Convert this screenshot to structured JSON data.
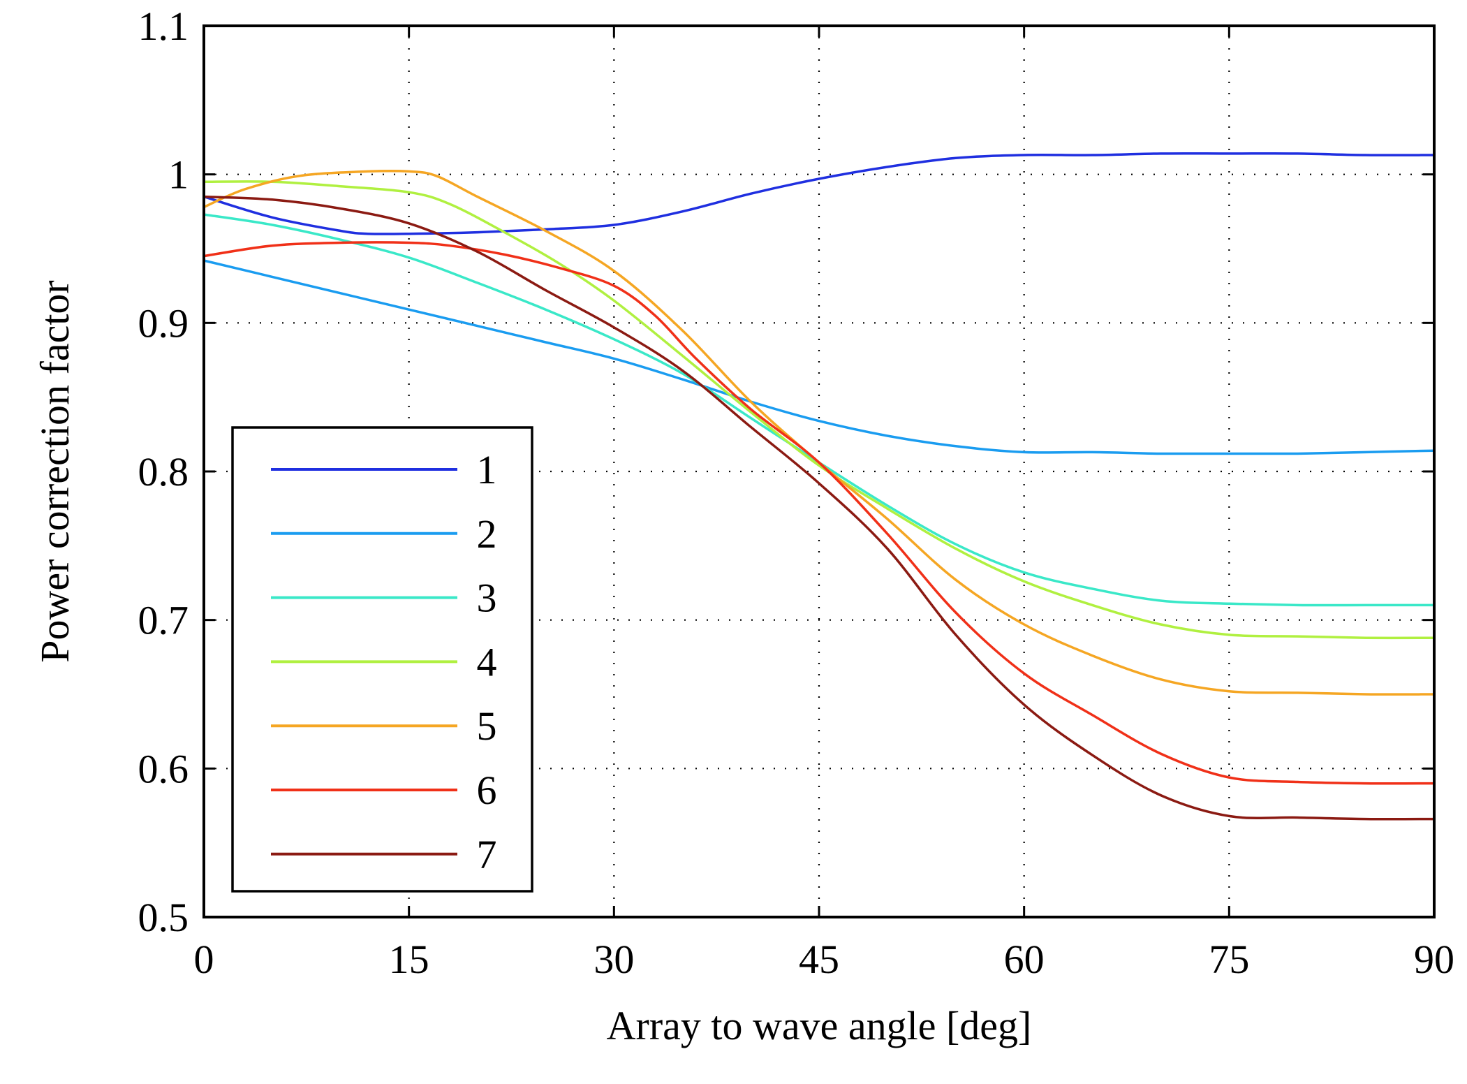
{
  "chart_data": {
    "type": "line",
    "title": "",
    "xlabel": "Array to wave angle [deg]",
    "ylabel": "Power correction factor",
    "xlim": [
      0,
      90
    ],
    "ylim": [
      0.5,
      1.1
    ],
    "xticks": [
      0,
      15,
      30,
      45,
      60,
      75,
      90
    ],
    "yticks": [
      0.5,
      0.6,
      0.7,
      0.8,
      0.9,
      1.0,
      1.1
    ],
    "xtick_labels": [
      "0",
      "15",
      "30",
      "45",
      "60",
      "75",
      "90"
    ],
    "ytick_labels": [
      "0.5",
      "0.6",
      "0.7",
      "0.8",
      "0.9",
      "1",
      "1.1"
    ],
    "grid": "dotted",
    "legend_position": "lower-left",
    "series": [
      {
        "name": "1",
        "color": "#1f2fe0",
        "x": [
          0,
          5,
          10,
          12,
          15,
          20,
          25,
          30,
          35,
          40,
          45,
          50,
          55,
          60,
          65,
          70,
          75,
          80,
          85,
          90
        ],
        "y": [
          0.985,
          0.971,
          0.962,
          0.96,
          0.96,
          0.961,
          0.963,
          0.966,
          0.975,
          0.987,
          0.997,
          1.005,
          1.011,
          1.013,
          1.013,
          1.014,
          1.014,
          1.014,
          1.013,
          1.013
        ]
      },
      {
        "name": "2",
        "color": "#1a9cf0",
        "x": [
          0,
          5,
          10,
          15,
          20,
          25,
          30,
          35,
          40,
          45,
          50,
          55,
          60,
          65,
          70,
          75,
          80,
          85,
          90
        ],
        "y": [
          0.942,
          0.931,
          0.92,
          0.909,
          0.898,
          0.887,
          0.876,
          0.862,
          0.847,
          0.834,
          0.824,
          0.817,
          0.813,
          0.813,
          0.812,
          0.812,
          0.812,
          0.813,
          0.814
        ]
      },
      {
        "name": "3",
        "color": "#3ae8c8",
        "x": [
          0,
          5,
          10,
          15,
          20,
          25,
          30,
          35,
          40,
          45,
          50,
          55,
          60,
          65,
          70,
          75,
          80,
          85,
          90
        ],
        "y": [
          0.973,
          0.966,
          0.956,
          0.944,
          0.927,
          0.909,
          0.889,
          0.866,
          0.836,
          0.806,
          0.777,
          0.751,
          0.732,
          0.721,
          0.713,
          0.711,
          0.71,
          0.71,
          0.71
        ]
      },
      {
        "name": "4",
        "color": "#b0f040",
        "x": [
          0,
          5,
          10,
          15,
          18,
          22,
          26,
          30,
          35,
          40,
          45,
          50,
          55,
          60,
          65,
          70,
          75,
          80,
          85,
          90
        ],
        "y": [
          0.995,
          0.995,
          0.992,
          0.988,
          0.98,
          0.961,
          0.94,
          0.915,
          0.878,
          0.84,
          0.804,
          0.775,
          0.748,
          0.726,
          0.71,
          0.697,
          0.69,
          0.689,
          0.688,
          0.688
        ]
      },
      {
        "name": "5",
        "color": "#f5a623",
        "x": [
          0,
          3,
          7,
          12,
          15,
          17,
          20,
          25,
          30,
          35,
          40,
          45,
          50,
          55,
          60,
          65,
          70,
          75,
          80,
          85,
          90
        ],
        "y": [
          0.978,
          0.99,
          0.999,
          1.002,
          1.002,
          0.999,
          0.985,
          0.962,
          0.935,
          0.895,
          0.847,
          0.806,
          0.768,
          0.727,
          0.697,
          0.676,
          0.66,
          0.652,
          0.651,
          0.65,
          0.65
        ]
      },
      {
        "name": "6",
        "color": "#f03018",
        "x": [
          0,
          5,
          10,
          15,
          18,
          22,
          26,
          30,
          33,
          36,
          40,
          45,
          50,
          55,
          60,
          65,
          70,
          75,
          80,
          85,
          90
        ],
        "y": [
          0.945,
          0.952,
          0.954,
          0.954,
          0.952,
          0.946,
          0.937,
          0.925,
          0.905,
          0.876,
          0.842,
          0.806,
          0.758,
          0.705,
          0.664,
          0.636,
          0.61,
          0.594,
          0.591,
          0.59,
          0.59
        ]
      },
      {
        "name": "7",
        "color": "#8b1a12",
        "x": [
          0,
          5,
          10,
          15,
          20,
          25,
          30,
          35,
          40,
          45,
          50,
          55,
          60,
          65,
          70,
          75,
          80,
          85,
          90
        ],
        "y": [
          0.985,
          0.983,
          0.977,
          0.967,
          0.948,
          0.922,
          0.897,
          0.868,
          0.83,
          0.792,
          0.748,
          0.69,
          0.643,
          0.609,
          0.582,
          0.568,
          0.567,
          0.566,
          0.566
        ]
      }
    ]
  }
}
